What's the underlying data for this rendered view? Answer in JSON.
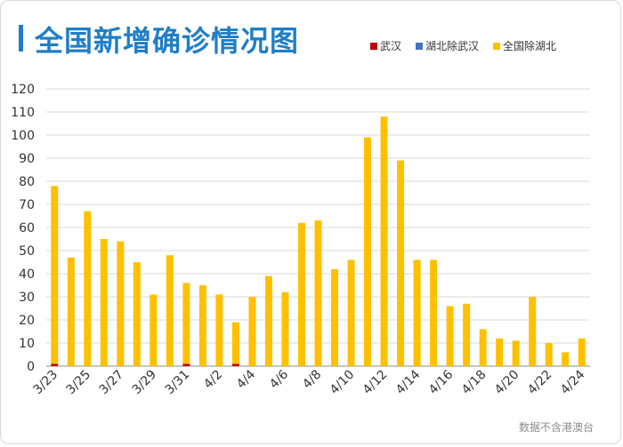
{
  "title": "全国新增确诊情况图",
  "source_note": "数据不含港澳台",
  "colors": {
    "title": "#1f7ec6",
    "wuhan": "#c00000",
    "hubei_ex_wuhan": "#4472c4",
    "national_ex_hubei": "#ffc000",
    "grid": "#d9d9d9"
  },
  "chart_data": {
    "type": "bar",
    "stacked": true,
    "title": "全国新增确诊情况图",
    "xlabel": "",
    "ylabel": "",
    "ylim": [
      0,
      120
    ],
    "yticks": [
      0,
      10,
      20,
      30,
      40,
      50,
      60,
      70,
      80,
      90,
      100,
      110,
      120
    ],
    "categories": [
      "3/23",
      "3/24",
      "3/25",
      "3/26",
      "3/27",
      "3/28",
      "3/29",
      "3/30",
      "3/31",
      "4/1",
      "4/2",
      "4/3",
      "4/4",
      "4/5",
      "4/6",
      "4/7",
      "4/8",
      "4/9",
      "4/10",
      "4/11",
      "4/12",
      "4/13",
      "4/14",
      "4/15",
      "4/16",
      "4/17",
      "4/18",
      "4/19",
      "4/20",
      "4/21",
      "4/22",
      "4/23",
      "4/24"
    ],
    "tick_labels": [
      "3/23",
      "3/25",
      "3/27",
      "3/29",
      "3/31",
      "4/2",
      "4/4",
      "4/6",
      "4/8",
      "4/10",
      "4/12",
      "4/14",
      "4/16",
      "4/18",
      "4/20",
      "4/22",
      "4/24"
    ],
    "series": [
      {
        "name": "武汉",
        "color": "#c00000",
        "values": [
          1,
          0,
          0,
          0,
          0,
          0,
          0,
          0,
          1,
          0,
          0,
          1,
          0,
          0,
          0,
          0,
          0,
          0,
          0,
          0,
          0,
          0,
          0,
          0,
          0,
          0,
          0,
          0,
          0,
          0,
          0,
          0,
          0
        ]
      },
      {
        "name": "湖北除武汉",
        "color": "#4472c4",
        "values": [
          0,
          0,
          0,
          0,
          0,
          0,
          0,
          0,
          0,
          0,
          0,
          0,
          0,
          0,
          0,
          0,
          0,
          0,
          0,
          0,
          0,
          0,
          0,
          0,
          0,
          0,
          0,
          0,
          0,
          0,
          0,
          0,
          0
        ]
      },
      {
        "name": "全国除湖北",
        "color": "#ffc000",
        "values": [
          77,
          47,
          67,
          55,
          54,
          45,
          31,
          48,
          35,
          35,
          31,
          18,
          30,
          39,
          32,
          62,
          63,
          42,
          46,
          99,
          108,
          89,
          46,
          46,
          26,
          27,
          16,
          12,
          11,
          30,
          10,
          6,
          12
        ]
      }
    ],
    "legend_position": "top-right",
    "grid": true
  }
}
